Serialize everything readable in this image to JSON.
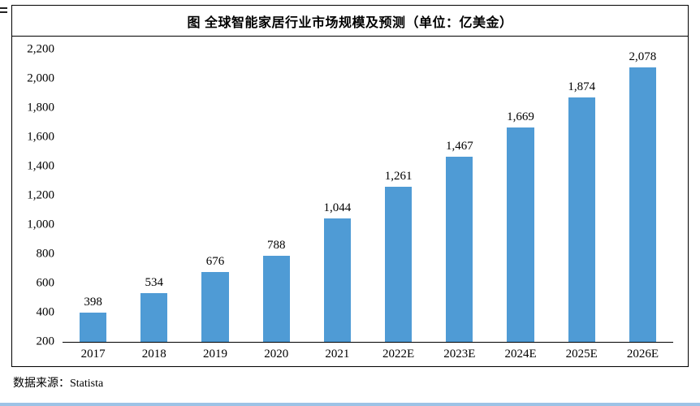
{
  "figure": {
    "title": "图 全球智能家居行业市场规模及预测（单位：亿美金）",
    "source": "数据来源：Statista"
  },
  "chart_data": {
    "type": "bar",
    "title": "图 全球智能家居行业市场规模及预测（单位：亿美金）",
    "categories": [
      "2017",
      "2018",
      "2019",
      "2020",
      "2021",
      "2022E",
      "2023E",
      "2024E",
      "2025E",
      "2026E"
    ],
    "values": [
      398,
      534,
      676,
      788,
      1044,
      1261,
      1467,
      1669,
      1874,
      2078
    ],
    "value_labels": [
      "398",
      "534",
      "676",
      "788",
      "1,044",
      "1,261",
      "1,467",
      "1,669",
      "1,874",
      "2,078"
    ],
    "xlabel": "",
    "ylabel": "",
    "ylim": [
      200,
      2200
    ],
    "ytick_step": 200,
    "yticks": [
      "2,200",
      "2,000",
      "1,800",
      "1,600",
      "1,400",
      "1,200",
      "1,000",
      "800",
      "600",
      "400",
      "200"
    ],
    "grid": false,
    "legend": "none",
    "bar_color": "#4F9BD5"
  },
  "colors": {
    "bar": "#4F9BD5",
    "bottom_strip": "#9DC3E6",
    "border": "#000000"
  }
}
